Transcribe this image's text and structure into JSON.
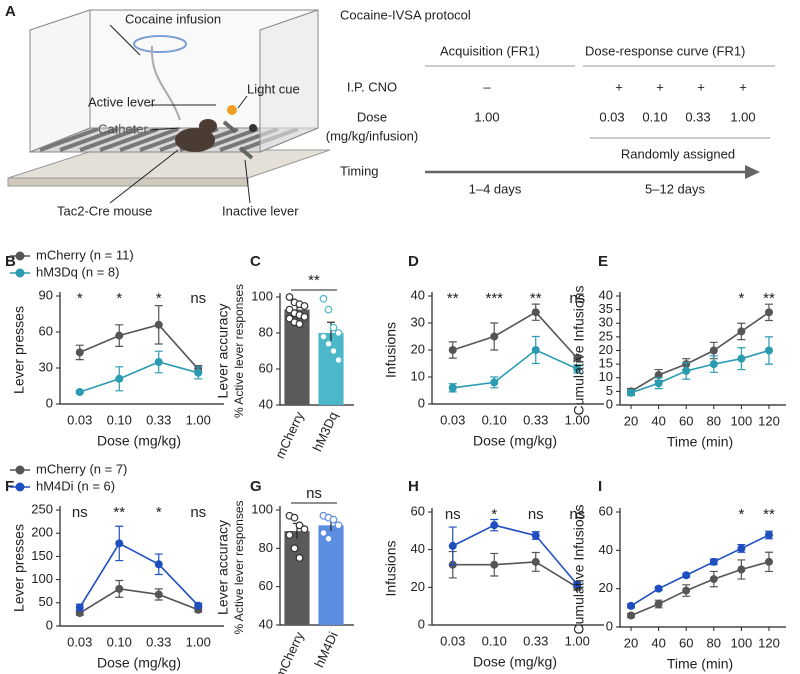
{
  "panel_a": {
    "letter": "A",
    "cocaine_infusion": "Cocaine infusion",
    "active_lever": "Active lever",
    "light_cue": "Light cue",
    "catheter": "Catheter",
    "mouse": "Tac2-Cre mouse",
    "inactive_lever": "Inactive lever",
    "protocol_title": "Cocaine-IVSA protocol",
    "acquisition": "Acquisition (FR1)",
    "dose_response": "Dose-response curve (FR1)",
    "cno_label": "I.P. CNO",
    "cno": [
      "–",
      "+",
      "+",
      "+",
      "+"
    ],
    "dose_label": "Dose",
    "dose_unit": "(mg/kg/infusion)",
    "doses": [
      "1.00",
      "0.03",
      "0.10",
      "0.33",
      "1.00"
    ],
    "random": "Randomly assigned",
    "timing": "Timing",
    "days_1": "1–4 days",
    "days_2": "5–12 days"
  },
  "chart_data": [
    {
      "type": "line",
      "panel_label": "B",
      "ylabel": "Lever presses",
      "xlabel": "Dose (mg/kg)",
      "categories": [
        "0.03",
        "0.10",
        "0.33",
        "1.00"
      ],
      "ylim": [
        0,
        90
      ],
      "yticks": [
        0,
        30,
        60,
        90
      ],
      "series": [
        {
          "name": "mCherry (n = 11)",
          "color": "#555555",
          "values": [
            43,
            57,
            66,
            29
          ],
          "errors": [
            6,
            9,
            16,
            3
          ]
        },
        {
          "name": "hM3Dq (n = 8)",
          "color": "#2a9bb0",
          "values": [
            10,
            21,
            35,
            26
          ],
          "errors": [
            1,
            10,
            9,
            5
          ]
        }
      ],
      "significance": [
        "*",
        "*",
        "*",
        "ns"
      ]
    },
    {
      "type": "bar",
      "panel_label": "C",
      "ylabel": "Lever accuracy",
      "ysublabel": "% Active lever responses",
      "categories": [
        "mCherry",
        "hM3Dq"
      ],
      "ylim": [
        40,
        100
      ],
      "yticks": [
        40,
        60,
        80,
        100
      ],
      "values": [
        93,
        80
      ],
      "errors": [
        3,
        6
      ],
      "colors": [
        "#5a5a5a",
        "#4ab8c8"
      ],
      "points": [
        [
          100,
          97,
          96,
          95,
          93,
          91,
          90,
          89,
          88,
          86,
          85
        ],
        [
          99,
          93,
          83,
          80,
          78,
          74,
          70,
          65
        ]
      ],
      "significance": "**"
    },
    {
      "type": "line",
      "panel_label": "D",
      "ylabel": "Infusions",
      "xlabel": "Dose (mg/kg)",
      "categories": [
        "0.03",
        "0.10",
        "0.33",
        "1.00"
      ],
      "ylim": [
        0,
        40
      ],
      "yticks": [
        0,
        10,
        20,
        30,
        40
      ],
      "series": [
        {
          "color": "#555555",
          "values": [
            20,
            25,
            34,
            17
          ],
          "errors": [
            3,
            5,
            3,
            1
          ]
        },
        {
          "color": "#2a9bb0",
          "values": [
            6,
            8,
            20,
            13
          ],
          "errors": [
            1.5,
            2,
            5,
            1.5
          ]
        }
      ],
      "significance": [
        "**",
        "***",
        "**",
        "ns"
      ]
    },
    {
      "type": "line",
      "panel_label": "E",
      "ylabel": "Cumulative Infusions",
      "xlabel": "Time (min)",
      "x": [
        20,
        40,
        60,
        80,
        100,
        120
      ],
      "xlim": [
        12,
        128
      ],
      "xticks": [
        20,
        40,
        60,
        80,
        100,
        120
      ],
      "ylim": [
        0,
        40
      ],
      "yticks": [
        0,
        5,
        10,
        15,
        20,
        25,
        30,
        35,
        40
      ],
      "series": [
        {
          "color": "#555555",
          "values": [
            5,
            11,
            15,
            20,
            27,
            34
          ],
          "errors": [
            1,
            2,
            2,
            3,
            3,
            3
          ]
        },
        {
          "color": "#2a9bb0",
          "values": [
            4.5,
            8,
            12.5,
            15,
            17,
            20
          ],
          "errors": [
            1,
            2,
            3,
            3,
            4,
            5
          ]
        }
      ],
      "significance": [
        null,
        null,
        null,
        null,
        "*",
        "**"
      ]
    },
    {
      "type": "line",
      "panel_label": "F",
      "ylabel": "Lever presses",
      "xlabel": "Dose (mg/kg)",
      "categories": [
        "0.03",
        "0.10",
        "0.33",
        "1.00"
      ],
      "ylim": [
        0,
        250
      ],
      "yticks": [
        0,
        50,
        100,
        150,
        200,
        250
      ],
      "series": [
        {
          "name": "mCherry (n = 7)",
          "color": "#555555",
          "values": [
            28,
            80,
            68,
            35
          ],
          "errors": [
            5,
            18,
            12,
            5
          ]
        },
        {
          "name": "hM4Di (n = 6)",
          "color": "#1f4fbf",
          "values": [
            40,
            178,
            133,
            44
          ],
          "errors": [
            7,
            37,
            22,
            5
          ]
        }
      ],
      "significance": [
        "ns",
        "**",
        "*",
        "ns"
      ]
    },
    {
      "type": "bar",
      "panel_label": "G",
      "ylabel": "Lever accuracy",
      "ysublabel": "% Active lever responses",
      "categories": [
        "mCherry",
        "hM4Di"
      ],
      "ylim": [
        40,
        100
      ],
      "yticks": [
        40,
        60,
        80,
        100
      ],
      "values": [
        89,
        92
      ],
      "errors": [
        4,
        3
      ],
      "colors": [
        "#5a5a5a",
        "#5b8ee0"
      ],
      "points": [
        [
          97,
          96,
          92,
          90,
          87,
          80,
          75
        ],
        [
          97,
          96,
          95,
          92,
          88,
          85
        ]
      ],
      "significance": "ns"
    },
    {
      "type": "line",
      "panel_label": "H",
      "ylabel": "Infusions",
      "xlabel": "Dose (mg/kg)",
      "categories": [
        "0.03",
        "0.10",
        "0.33",
        "1.00"
      ],
      "ylim": [
        0,
        60
      ],
      "yticks": [
        0,
        20,
        40,
        60
      ],
      "series": [
        {
          "color": "#555555",
          "values": [
            32,
            32,
            33.5,
            20
          ],
          "errors": [
            7,
            6,
            5,
            1.5
          ]
        },
        {
          "color": "#1f4fbf",
          "values": [
            42,
            53,
            47.5,
            21.5
          ],
          "errors": [
            10,
            3,
            2,
            1
          ]
        }
      ],
      "significance": [
        "ns",
        "*",
        "ns",
        "ns"
      ]
    },
    {
      "type": "line",
      "panel_label": "I",
      "ylabel": "Cumulative Infusions",
      "xlabel": "Time (min)",
      "x": [
        20,
        40,
        60,
        80,
        100,
        120
      ],
      "xlim": [
        12,
        128
      ],
      "xticks": [
        20,
        40,
        60,
        80,
        100,
        120
      ],
      "ylim": [
        0,
        60
      ],
      "yticks": [
        0,
        20,
        40,
        60
      ],
      "series": [
        {
          "color": "#555555",
          "values": [
            6,
            12,
            19,
            25,
            30,
            34
          ],
          "errors": [
            1,
            2,
            3,
            4,
            5,
            5
          ]
        },
        {
          "color": "#1f4fbf",
          "values": [
            11,
            20,
            27,
            34,
            41,
            48
          ],
          "errors": [
            1,
            1,
            1,
            1.5,
            2,
            2
          ]
        }
      ],
      "significance": [
        null,
        null,
        null,
        null,
        "*",
        "**"
      ]
    }
  ]
}
